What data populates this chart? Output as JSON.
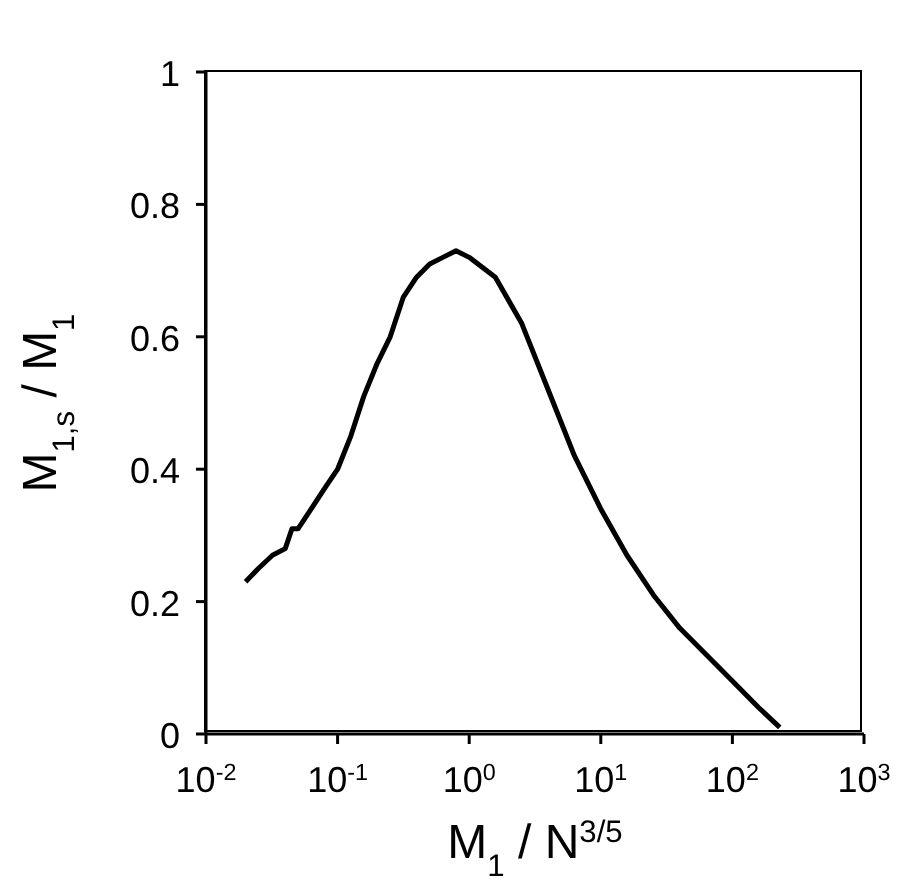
{
  "chart_data": {
    "type": "line",
    "xlabel": "M$_{1}$ / N$^{3/5}$",
    "ylabel": "M$_{1,s}$ / M$_{1}$",
    "log": "x",
    "xlim": [
      0.01,
      1000
    ],
    "ylim": [
      0,
      1
    ],
    "xticks": [
      {
        "value": 0.01,
        "label": "10$^{-2}$"
      },
      {
        "value": 0.1,
        "label": "10$^{-1}$"
      },
      {
        "value": 1,
        "label": "10$^{0}$"
      },
      {
        "value": 10,
        "label": "10$^{1}$"
      },
      {
        "value": 100,
        "label": "10$^{2}$"
      },
      {
        "value": 1000,
        "label": "10$^{3}$"
      }
    ],
    "yticks": [
      0,
      {
        "value": 0.2,
        "label": "0.2"
      },
      {
        "value": 0.4,
        "label": "0.4"
      },
      {
        "value": 0.6,
        "label": "0.6"
      },
      {
        "value": 0.8,
        "label": "0.8"
      },
      1
    ],
    "grid": false,
    "legend": false,
    "marker": "none",
    "line_style": "solid",
    "x": [
      0.02,
      0.025,
      0.032,
      0.04,
      0.045,
      0.05,
      0.063,
      0.079,
      0.1,
      0.126,
      0.158,
      0.2,
      0.251,
      0.316,
      0.398,
      0.501,
      0.631,
      0.794,
      1,
      1.58,
      2.51,
      3.98,
      6.31,
      10,
      15.8,
      25.1,
      39.8,
      63.1,
      100,
      158,
      229
    ],
    "series": [
      {
        "color": "#000000",
        "values": [
          0.23,
          0.25,
          0.27,
          0.28,
          0.31,
          0.31,
          0.34,
          0.37,
          0.4,
          0.45,
          0.51,
          0.56,
          0.6,
          0.66,
          0.69,
          0.71,
          0.72,
          0.73,
          0.72,
          0.69,
          0.62,
          0.52,
          0.42,
          0.34,
          0.27,
          0.21,
          0.16,
          0.12,
          0.08,
          0.04,
          0.01
        ]
      }
    ]
  }
}
